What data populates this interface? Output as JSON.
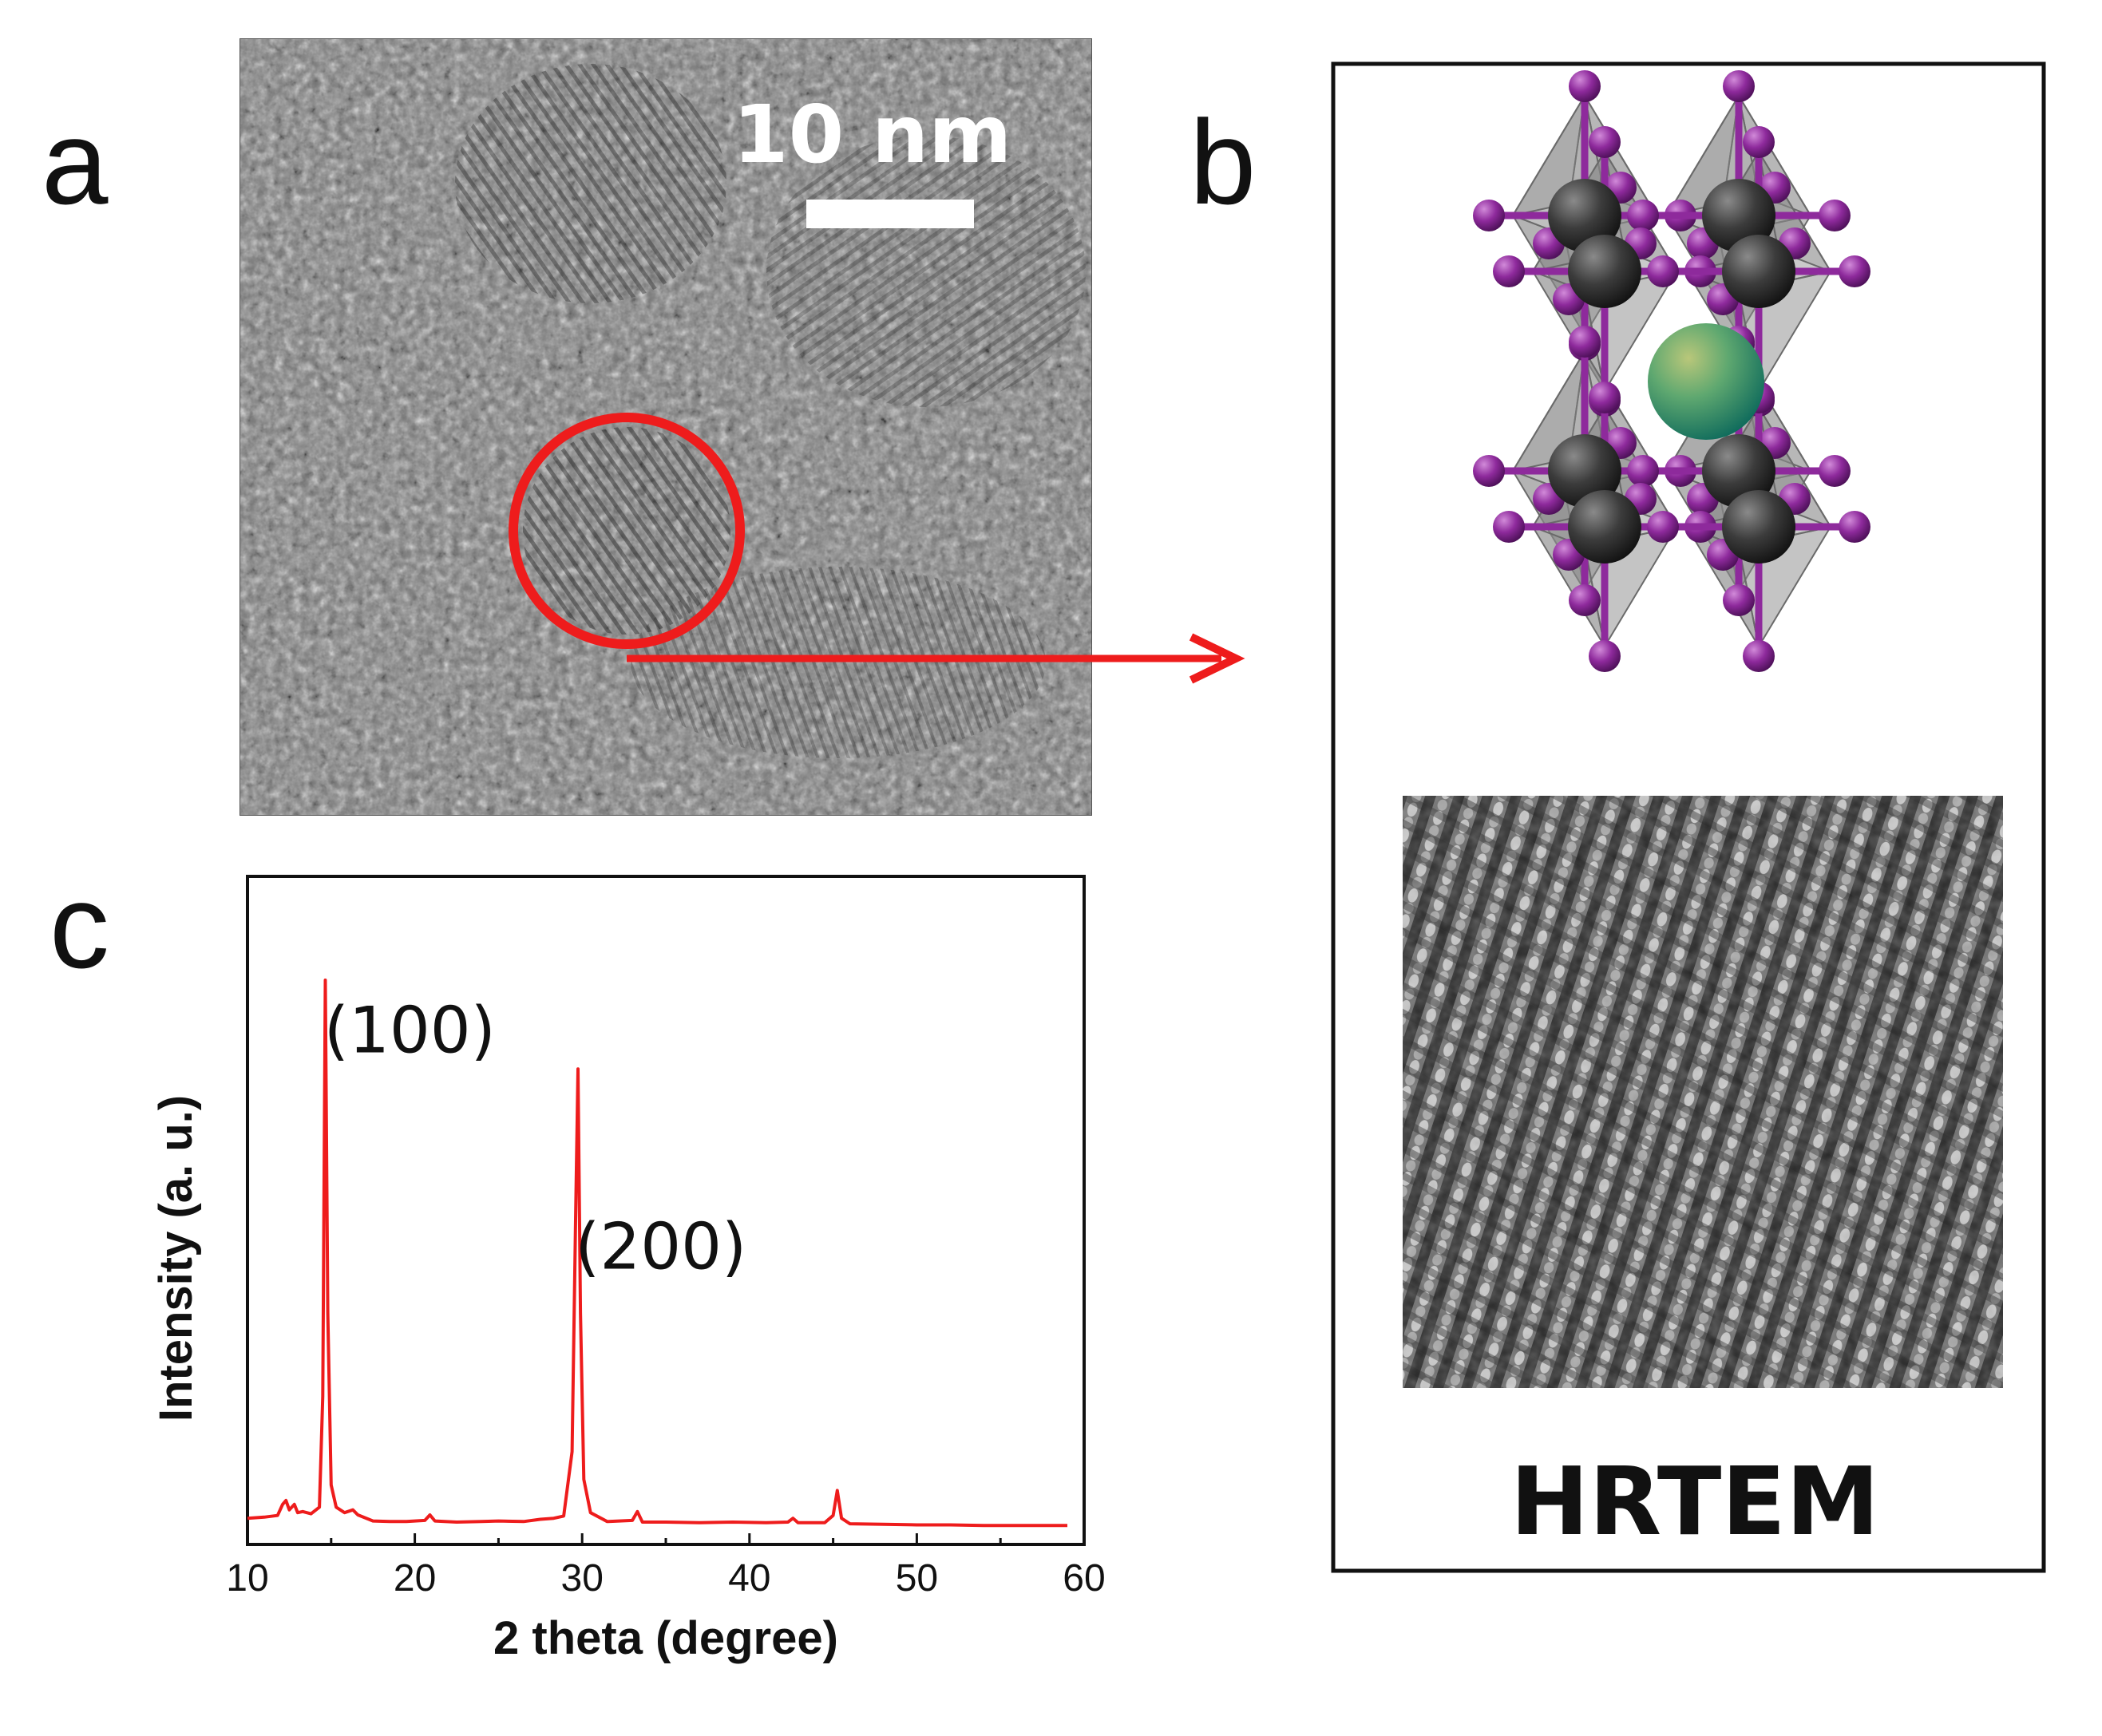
{
  "panels": {
    "a": {
      "letter": "a",
      "scale_bar": {
        "label": "10 nm"
      }
    },
    "b": {
      "letter": "b",
      "caption": "HRTEM"
    },
    "c": {
      "letter": "c"
    }
  },
  "colors": {
    "highlight_red": "#ee1c1c",
    "octahedron_gray": "#8a8a8a",
    "b_site_dark": "#3a3a3a",
    "halide_purple": "#8e2a9c",
    "a_site_green": "#3d9a6e"
  },
  "chart_data": {
    "type": "line",
    "xlabel": "2 theta (degree)",
    "ylabel": "Intensity (a. u.)",
    "xlim": [
      10,
      60
    ],
    "xticks": [
      "10",
      "20",
      "30",
      "40",
      "50",
      "60"
    ],
    "ylim": [
      0,
      100
    ],
    "y_tick_labels": false,
    "grid": false,
    "series": [
      {
        "color": "#ee1c1c",
        "x": [
          10.0,
          11.0,
          11.8,
          12.1,
          12.3,
          12.5,
          12.8,
          13.0,
          13.3,
          13.8,
          14.3,
          14.5,
          14.65,
          14.8,
          15.0,
          15.3,
          15.8,
          16.3,
          16.6,
          17.5,
          18.5,
          19.5,
          20.6,
          20.9,
          21.2,
          22.5,
          24.0,
          25.0,
          26.5,
          27.5,
          28.3,
          28.9,
          29.4,
          29.6,
          29.75,
          29.9,
          30.1,
          30.5,
          31.5,
          33.0,
          33.3,
          33.6,
          35.0,
          37.0,
          39.0,
          41.0,
          42.3,
          42.6,
          42.9,
          44.5,
          45.0,
          45.25,
          45.5,
          46.0,
          48.0,
          50.0,
          52.0,
          54.0,
          56.0,
          59.0
        ],
        "y": [
          3.0,
          3.2,
          3.5,
          5.5,
          6.2,
          4.5,
          5.5,
          4.0,
          4.2,
          3.8,
          5.0,
          25.0,
          100.0,
          40.0,
          9.0,
          5.0,
          4.0,
          4.5,
          3.6,
          2.5,
          2.4,
          2.4,
          2.6,
          3.6,
          2.5,
          2.3,
          2.4,
          2.5,
          2.4,
          2.8,
          3.0,
          3.4,
          15.0,
          55.0,
          84.0,
          40.0,
          10.0,
          4.0,
          2.4,
          2.6,
          4.2,
          2.3,
          2.3,
          2.2,
          2.3,
          2.2,
          2.3,
          3.0,
          2.2,
          2.2,
          3.5,
          8.0,
          3.0,
          2.0,
          1.9,
          1.8,
          1.8,
          1.7,
          1.7,
          1.7
        ]
      }
    ],
    "annotations": [
      {
        "text": "(100)",
        "x": 19.7,
        "y": 87
      },
      {
        "text": "(200)",
        "x": 34.7,
        "y": 48
      }
    ]
  }
}
